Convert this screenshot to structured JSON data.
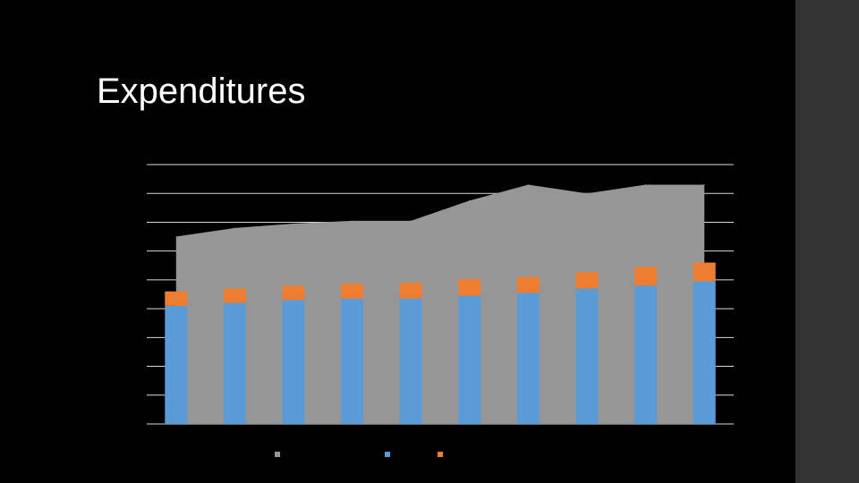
{
  "slide": {
    "title": "Expenditures"
  },
  "colors": {
    "background": "#000000",
    "side_strip": "#333333",
    "title_text": "#ffffff",
    "gridline": "#d9d9d9",
    "area_series": "#969696",
    "blue_series": "#5b9bd5",
    "orange_series": "#ed7d31"
  },
  "chart_data": {
    "type": "bar",
    "title": "",
    "xlabel": "",
    "ylabel": "",
    "ylim": [
      0,
      9
    ],
    "y_gridlines": 9,
    "grid": true,
    "legend_position": "bottom",
    "category_count": 10,
    "categories": [
      "",
      "",
      "",
      "",
      "",
      "",
      "",
      "",
      "",
      ""
    ],
    "series": [
      {
        "render": "area",
        "color": "#969696",
        "values": [
          6.5,
          6.8,
          6.95,
          7.05,
          7.05,
          7.75,
          8.3,
          8.0,
          8.3,
          8.3
        ]
      },
      {
        "render": "stacked-bar",
        "color": "#5b9bd5",
        "values": [
          4.1,
          4.2,
          4.3,
          4.35,
          4.35,
          4.45,
          4.55,
          4.7,
          4.8,
          4.95
        ]
      },
      {
        "render": "stacked-bar",
        "color": "#ed7d31",
        "values": [
          0.5,
          0.5,
          0.5,
          0.52,
          0.55,
          0.58,
          0.55,
          0.57,
          0.65,
          0.65
        ]
      }
    ]
  }
}
